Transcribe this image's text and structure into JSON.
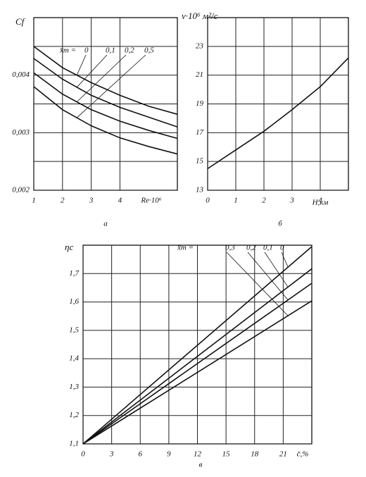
{
  "chart_data": [
    {
      "type": "line",
      "caption": "а",
      "y_label": "Cf",
      "x_label": "Re·10⁶",
      "annotation": "x̄т = ",
      "x": [
        1,
        2,
        3,
        4,
        5,
        6
      ],
      "xlim": [
        1,
        6
      ],
      "xticks": [
        1,
        2,
        3,
        4
      ],
      "ylim": [
        0.002,
        0.005
      ],
      "yticks": [
        {
          "value": 0.002,
          "label": "0,002"
        },
        {
          "value": 0.0025,
          "label": ""
        },
        {
          "value": 0.003,
          "label": "0,003"
        },
        {
          "value": 0.0035,
          "label": ""
        },
        {
          "value": 0.004,
          "label": "0,004"
        },
        {
          "value": 0.0045,
          "label": ""
        }
      ],
      "grid": true,
      "series": [
        {
          "name": "0",
          "color": "#111",
          "values": [
            0.0045,
            0.00413,
            0.00387,
            0.00365,
            0.00346,
            0.00332
          ]
        },
        {
          "name": "0,1",
          "color": "#111",
          "values": [
            0.00429,
            0.00393,
            0.00365,
            0.00344,
            0.00327,
            0.0031
          ]
        },
        {
          "name": "0,2",
          "color": "#111",
          "values": [
            0.00404,
            0.00367,
            0.0034,
            0.0032,
            0.00304,
            0.0029
          ]
        },
        {
          "name": "0,5",
          "color": "#111",
          "values": [
            0.0038,
            0.0034,
            0.00312,
            0.00291,
            0.00276,
            0.00263
          ]
        }
      ]
    },
    {
      "type": "line",
      "caption": "б",
      "y_label": "ν·10⁶ м²/с",
      "x_label": "H,км",
      "x": [
        0,
        1,
        2,
        3,
        4,
        5
      ],
      "xlim": [
        0,
        5
      ],
      "xticks": [
        0,
        1,
        2,
        3,
        4
      ],
      "ylim": [
        13,
        25
      ],
      "yticks": [
        13,
        15,
        17,
        19,
        21,
        23
      ],
      "grid": true,
      "series": [
        {
          "name": "ν",
          "color": "#111",
          "values": [
            14.5,
            15.8,
            17.1,
            18.6,
            20.2,
            22.2
          ]
        }
      ]
    },
    {
      "type": "line",
      "caption": "в",
      "y_label": "ηc",
      "x_label": "c̄,%",
      "annotation": "x̄т = ",
      "x": [
        0,
        24
      ],
      "xlim": [
        0,
        24
      ],
      "xticks": [
        0,
        3,
        6,
        9,
        12,
        15,
        18,
        21
      ],
      "ylim": [
        1.1,
        1.8
      ],
      "yticks": [
        {
          "value": 1.1,
          "label": "1,1"
        },
        {
          "value": 1.2,
          "label": "1,2"
        },
        {
          "value": 1.3,
          "label": "1,3"
        },
        {
          "value": 1.4,
          "label": "1,4"
        },
        {
          "value": 1.5,
          "label": "1,5"
        },
        {
          "value": 1.6,
          "label": "1,6"
        },
        {
          "value": 1.7,
          "label": "1,7"
        }
      ],
      "grid": true,
      "series": [
        {
          "name": "0,3",
          "color": "#111",
          "values": [
            1.1,
            1.604
          ]
        },
        {
          "name": "0,2",
          "color": "#111",
          "values": [
            1.1,
            1.666
          ]
        },
        {
          "name": "0,1",
          "color": "#111",
          "values": [
            1.1,
            1.717
          ]
        },
        {
          "name": "0",
          "color": "#111",
          "values": [
            1.1,
            1.795
          ]
        }
      ]
    }
  ]
}
